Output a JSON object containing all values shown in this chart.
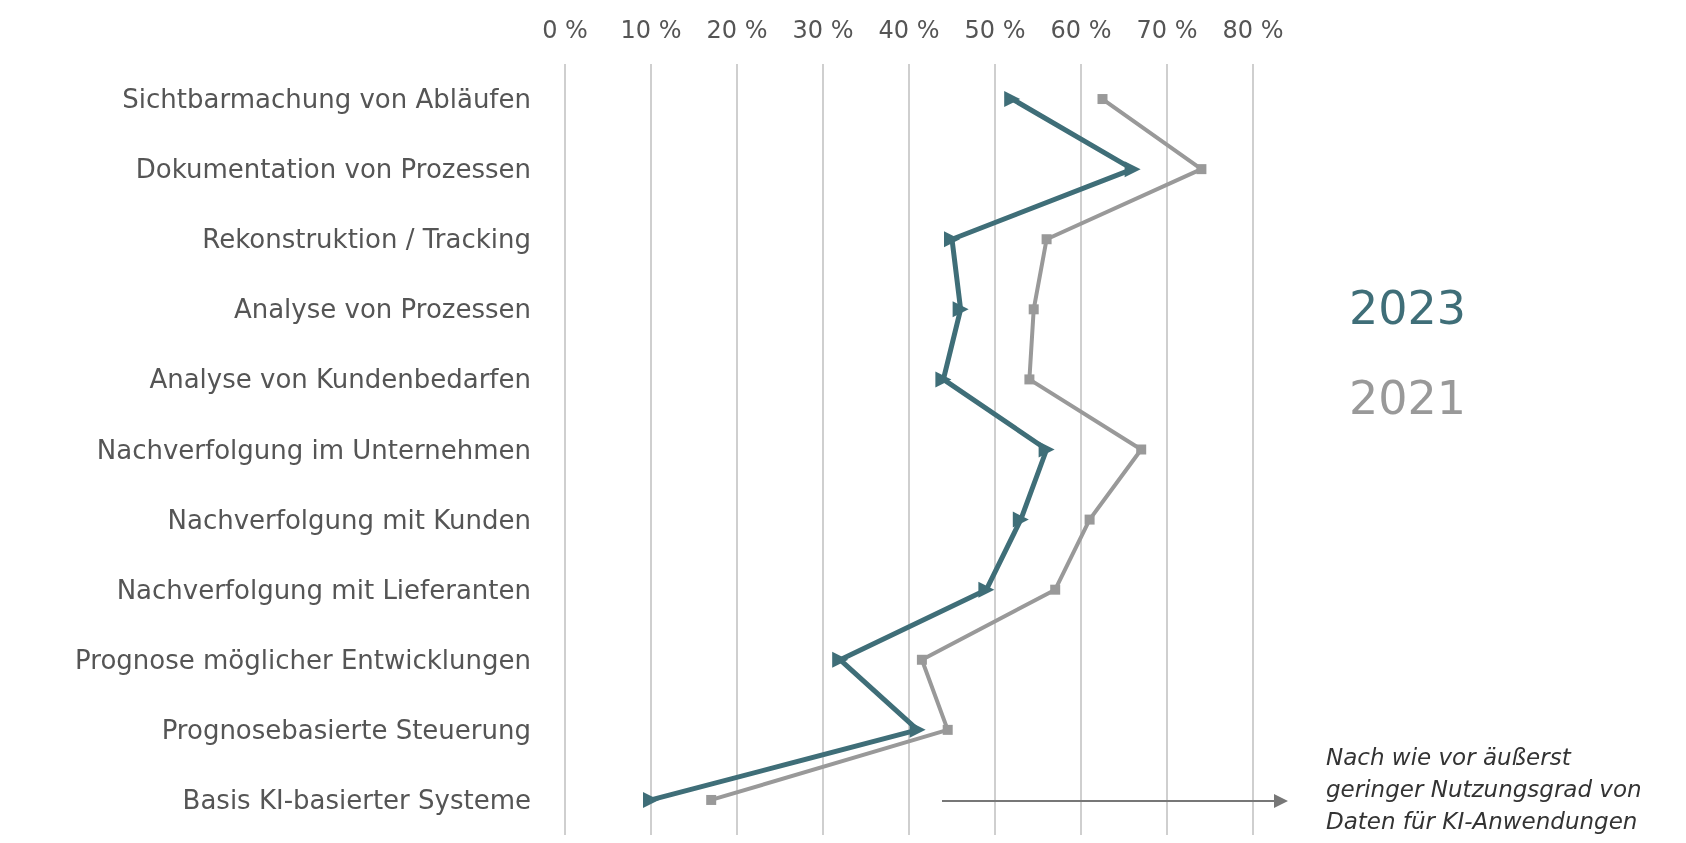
{
  "chart_data": {
    "type": "line",
    "categories": [
      "Sichtbarmachung von Abläufen",
      "Dokumentation von Prozessen",
      "Rekonstruktion / Tracking",
      "Analyse von Prozessen",
      "Analyse von Kundenbedarfen",
      "Nachverfolgung im Unternehmen",
      "Nachverfolgung mit Kunden",
      "Nachverfolgung mit Lieferanten",
      "Prognose möglicher Entwicklungen",
      "Prognosebasierte Steuerung",
      "Basis KI-basierter Systeme"
    ],
    "orientation": "horizontal",
    "series": [
      {
        "name": "2023",
        "color": "#3f6e78",
        "marker": "triangle",
        "values": [
          52,
          66,
          45,
          46,
          44,
          56,
          53,
          49,
          32,
          41,
          10
        ]
      },
      {
        "name": "2021",
        "color": "#999999",
        "marker": "square",
        "values": [
          62.5,
          74,
          56,
          54.5,
          54,
          67,
          61,
          57,
          41.5,
          44.5,
          17
        ]
      }
    ],
    "xlim": [
      0,
      80
    ],
    "xticks": [
      {
        "value": 0,
        "label": "0 %"
      },
      {
        "value": 10,
        "label": "10 %"
      },
      {
        "value": 20,
        "label": "20 %"
      },
      {
        "value": 30,
        "label": "30 %"
      },
      {
        "value": 40,
        "label": "40 %"
      },
      {
        "value": 50,
        "label": "50 %"
      },
      {
        "value": 60,
        "label": "60 %"
      },
      {
        "value": 70,
        "label": "70 %"
      },
      {
        "value": 80,
        "label": "80 %"
      }
    ],
    "grid": "x",
    "legend": "right",
    "line_style": "solid",
    "annotations": [
      "Nach wie vor äußerst geringer Nutzungsgrad von Daten für KI-Anwendungen"
    ]
  }
}
